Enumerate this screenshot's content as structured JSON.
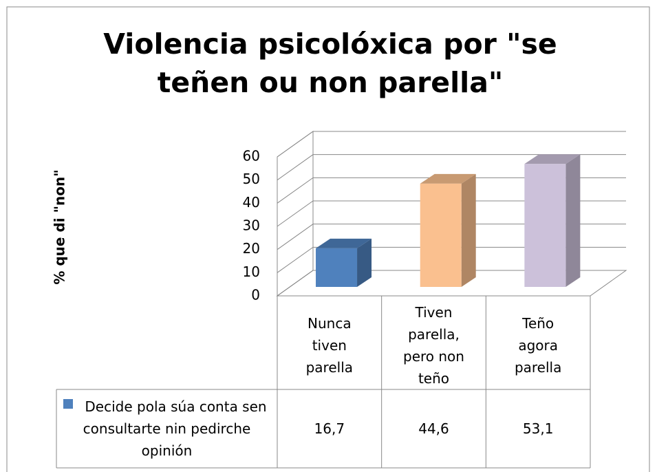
{
  "chart_data": {
    "type": "bar3d",
    "title": "Violencia psicolóxica por \"se teñen ou non parella\"",
    "ylabel": "% que di \"non\"",
    "categories": [
      "Nunca tiven parella",
      "Tiven parella, pero non teño",
      "Teño agora parella"
    ],
    "series": [
      {
        "name": "Decide pola súa conta sen consultarte nin pedirche opinión",
        "color": "#4f81bd",
        "values": [
          16.7,
          44.6,
          53.1
        ],
        "value_labels": [
          "16,7",
          "44,6",
          "53,1"
        ]
      }
    ],
    "colors": [
      "#4f81bd",
      "#fac08f",
      "#ccc1da"
    ],
    "ylim": [
      0,
      60
    ],
    "yticks": [
      0,
      10,
      20,
      30,
      40,
      50,
      60
    ],
    "grid": true
  }
}
